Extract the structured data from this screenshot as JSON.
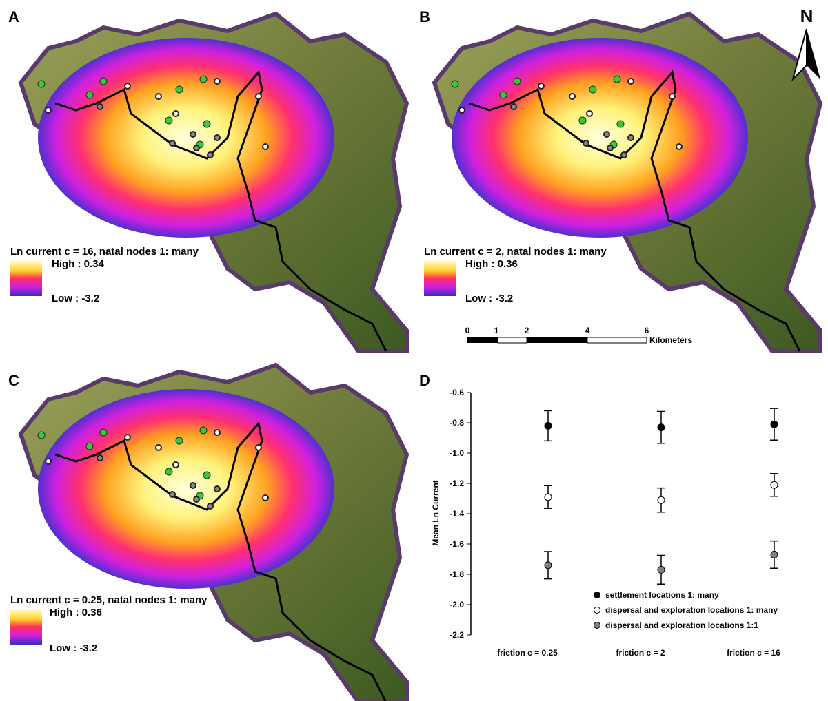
{
  "panels": [
    {
      "letter": "A",
      "legend_title": "Ln current c = 16, natal nodes 1: many",
      "high": "High : 0.34",
      "low": "Low : -3.2"
    },
    {
      "letter": "B",
      "legend_title": "Ln current c = 2, natal nodes 1: many",
      "high": "High : 0.36",
      "low": "Low : -3.2"
    },
    {
      "letter": "C",
      "legend_title": "Ln current c = 0.25, natal nodes 1: many",
      "high": "High : 0.36",
      "low": "Low : -3.2"
    }
  ],
  "north": "N",
  "scale_bar": {
    "ticks": [
      "0",
      "1",
      "2",
      "4",
      "6"
    ],
    "unit": "Kilometers"
  },
  "chart_data": {
    "type": "errorbar",
    "letter": "D",
    "ylabel": "Mean Ln Current",
    "categories": [
      "friction c = 0.25",
      "friction c = 2",
      "friction c = 16"
    ],
    "series": [
      {
        "name": "settlement locations 1: many",
        "color": "#000000",
        "values": [
          -0.82,
          -0.83,
          -0.81
        ],
        "errors": [
          0.1,
          0.105,
          0.105
        ]
      },
      {
        "name": "dispersal and exploration locations 1: many",
        "color": "#ffffff",
        "values": [
          -1.29,
          -1.31,
          -1.21
        ],
        "errors": [
          0.075,
          0.08,
          0.075
        ]
      },
      {
        "name": "dispersal and exploration locations 1:1",
        "color": "#808080",
        "values": [
          -1.74,
          -1.77,
          -1.67
        ],
        "errors": [
          0.09,
          0.095,
          0.09
        ]
      }
    ],
    "ylim": [
      -2.2,
      -0.6
    ],
    "yticks": [
      {
        "value": -2.2,
        "label": "-2.2"
      },
      {
        "value": -2,
        "label": "-2.0"
      },
      {
        "value": -1.8,
        "label": "-1.8"
      },
      {
        "value": -1.6,
        "label": "-1.6"
      },
      {
        "value": -1.4,
        "label": "-1.4"
      },
      {
        "value": -1.2,
        "label": "-1.2"
      },
      {
        "value": -1,
        "label": "-1.0"
      },
      {
        "value": -0.8,
        "label": "-0.8"
      },
      {
        "value": -0.6,
        "label": "-0.6"
      }
    ],
    "legend": "lower right"
  }
}
